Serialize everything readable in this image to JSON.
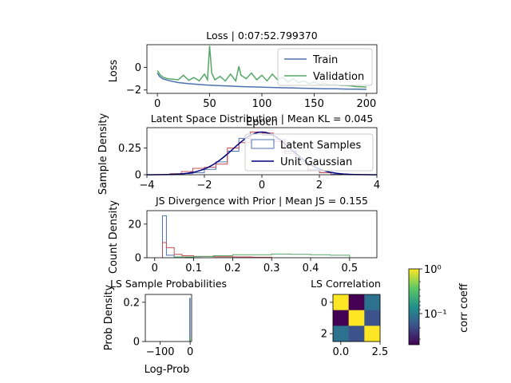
{
  "chart_data": [
    {
      "type": "line",
      "title": "Loss | 0:07:52.799370",
      "xlabel": "Epoch",
      "ylabel": "Loss",
      "xlim": [
        -10,
        210
      ],
      "ylim": [
        -2.3,
        2.0
      ],
      "xticks": [
        0,
        50,
        100,
        150,
        200
      ],
      "yticks": [
        -2,
        0
      ],
      "legend": "top-right",
      "series": [
        {
          "name": "Train",
          "color": "#4c72b0",
          "x": [
            0,
            2,
            5,
            10,
            15,
            20,
            30,
            40,
            50,
            60,
            70,
            80,
            90,
            100,
            110,
            120,
            130,
            140,
            150,
            160,
            170,
            180,
            190,
            200
          ],
          "y": [
            -0.5,
            -0.8,
            -1.0,
            -1.15,
            -1.25,
            -1.35,
            -1.45,
            -1.52,
            -1.58,
            -1.62,
            -1.66,
            -1.7,
            -1.73,
            -1.76,
            -1.78,
            -1.81,
            -1.83,
            -1.85,
            -1.87,
            -1.89,
            -1.9,
            -1.92,
            -1.93,
            -1.95
          ]
        },
        {
          "name": "Validation",
          "color": "#55a868",
          "x": [
            0,
            3,
            6,
            10,
            15,
            20,
            25,
            30,
            35,
            40,
            45,
            48,
            50,
            52,
            55,
            60,
            65,
            70,
            75,
            78,
            80,
            85,
            90,
            95,
            100,
            105,
            110,
            115,
            120,
            125,
            130,
            135,
            140,
            145,
            150,
            155,
            160,
            165,
            170,
            175,
            180,
            185,
            190,
            195,
            200
          ],
          "y": [
            -0.3,
            -0.7,
            -0.9,
            -1.0,
            -1.05,
            -1.1,
            -0.7,
            -1.15,
            -0.9,
            -1.2,
            -0.6,
            -1.1,
            1.9,
            -0.5,
            -1.1,
            -0.8,
            -1.2,
            -0.6,
            -1.2,
            0.1,
            -0.7,
            -1.0,
            -0.5,
            -1.1,
            -0.7,
            -1.2,
            -0.6,
            -1.1,
            -0.9,
            -1.3,
            -1.0,
            -1.35,
            -1.2,
            -1.45,
            -1.3,
            -1.5,
            -1.45,
            -1.55,
            -1.5,
            -1.6,
            -1.6,
            -1.65,
            -1.7,
            -1.72,
            -1.75
          ]
        }
      ]
    },
    {
      "type": "histogram",
      "title": "Latent Space Distribution | Mean KL = 0.045",
      "ylabel": "Sample Density",
      "xlim": [
        -4,
        4
      ],
      "ylim": [
        0,
        0.44
      ],
      "xticks": [
        -4,
        -2,
        0,
        2,
        4
      ],
      "yticks": [
        0.0,
        0.25
      ],
      "legend": "top-right",
      "bin_edges": [
        -3.2,
        -2.8,
        -2.4,
        -2.0,
        -1.6,
        -1.2,
        -0.8,
        -0.4,
        0.0,
        0.4,
        0.8,
        1.2,
        1.6,
        2.0,
        2.4,
        2.8
      ],
      "series": [
        {
          "name": "Latent Samples",
          "color": "#4c72b0",
          "values": [
            0.005,
            0.01,
            0.02,
            0.05,
            0.12,
            0.22,
            0.34,
            0.38,
            0.37,
            0.33,
            0.22,
            0.12,
            0.05,
            0.02,
            0.005
          ]
        },
        {
          "color": "#c44e52",
          "values": [
            0.01,
            0.03,
            0.06,
            0.07,
            0.1,
            0.25,
            0.3,
            0.4,
            0.39,
            0.31,
            0.2,
            0.1,
            0.04,
            0.02,
            0.0
          ]
        }
      ],
      "curve": {
        "name": "Unit Gaussian",
        "color": "#00007f",
        "function": "normal_pdf",
        "mean": 0,
        "std": 1
      }
    },
    {
      "type": "histogram",
      "title": "JS Divergence with Prior | Mean JS = 0.155",
      "ylabel": "Count Density",
      "xlim": [
        -0.02,
        0.57
      ],
      "ylim": [
        0,
        28
      ],
      "xticks": [
        0.0,
        0.1,
        0.2,
        0.3,
        0.4,
        0.5
      ],
      "yticks": [
        0,
        20
      ],
      "series": [
        {
          "color": "#4c72b0",
          "bin_edges": [
            0.02,
            0.03,
            0.05,
            0.08,
            0.12
          ],
          "values": [
            25,
            1.5,
            0.5,
            0
          ]
        },
        {
          "color": "#c44e52",
          "bin_edges": [
            0.02,
            0.03,
            0.05,
            0.07,
            0.1,
            0.15,
            0.2,
            0.25,
            0.3
          ],
          "values": [
            9,
            6,
            2,
            1.2,
            0.8,
            0.6,
            0.5,
            0.3
          ]
        },
        {
          "color": "#55a868",
          "bin_edges": [
            0.05,
            0.1,
            0.15,
            0.2,
            0.25,
            0.3,
            0.35,
            0.4,
            0.45,
            0.5
          ],
          "values": [
            0.5,
            0.8,
            1.2,
            1.8,
            1.8,
            2.2,
            2.0,
            1.8,
            1.5
          ]
        }
      ]
    },
    {
      "type": "histogram",
      "title": "LS Sample Probabilities",
      "xlabel": "Log-Prob",
      "ylabel": "Prob Density",
      "xlim": [
        -150,
        5
      ],
      "ylim": [
        0,
        0.24
      ],
      "xticks": [
        -100,
        0
      ],
      "xticklabels": [
        "−100",
        "0"
      ],
      "yticks": [
        0.0,
        0.2
      ],
      "series": [
        {
          "color": "#4c72b0",
          "bin_edges": [
            -1.5,
            0
          ],
          "values": [
            0.22
          ]
        },
        {
          "color": "#55a868",
          "bin_edges": [
            -1.0,
            0.5
          ],
          "values": [
            0.02
          ]
        }
      ]
    },
    {
      "type": "heatmap",
      "title": "LS Correlation",
      "xticks": [
        0.0,
        2.5
      ],
      "yticks": [
        0,
        2
      ],
      "cells": [
        [
          "#fde725",
          "#440154",
          "#2c728e"
        ],
        [
          "#440154",
          "#fde725",
          "#3b528b"
        ],
        [
          "#2c728e",
          "#3b528b",
          "#fde725"
        ]
      ],
      "colorbar": {
        "label": "corr coeff",
        "scale": "log",
        "ticks": [
          "10⁰",
          "10⁻¹"
        ],
        "stops": [
          "#440154",
          "#3b528b",
          "#21918c",
          "#5ec962",
          "#fde725"
        ]
      }
    }
  ]
}
